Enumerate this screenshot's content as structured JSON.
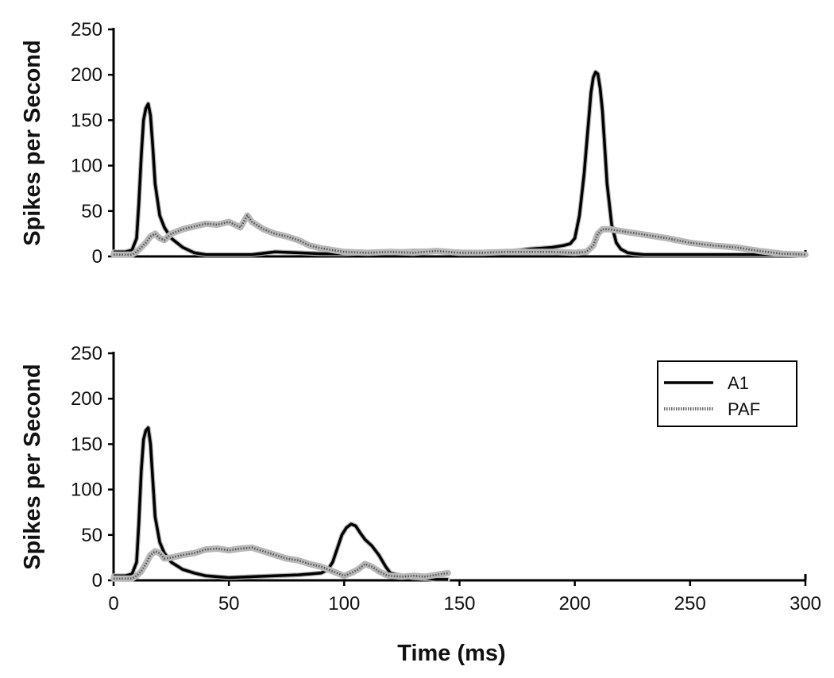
{
  "chart_data": [
    {
      "type": "line",
      "title": "",
      "ylabel": "Spikes per Second",
      "xlabel": "",
      "xlim": [
        0,
        300
      ],
      "ylim": [
        0,
        250
      ],
      "yticks": [
        "0",
        "50",
        "100",
        "150",
        "200",
        "250"
      ],
      "xticks": [],
      "grid": false,
      "legend": null,
      "series": [
        {
          "name": "A1",
          "style": "solid",
          "x": [
            0,
            5,
            8,
            10,
            11,
            12,
            13,
            14,
            15,
            16,
            17,
            18,
            20,
            22,
            25,
            30,
            35,
            40,
            50,
            60,
            70,
            80,
            90,
            100,
            110,
            120,
            130,
            140,
            150,
            160,
            170,
            180,
            190,
            195,
            198,
            200,
            202,
            204,
            206,
            207,
            208,
            209,
            210,
            211,
            212,
            213,
            214,
            216,
            218,
            220,
            223,
            226,
            230,
            240,
            250,
            260,
            270,
            280,
            290,
            300
          ],
          "values": [
            5,
            5,
            7,
            20,
            60,
            110,
            150,
            163,
            168,
            155,
            120,
            80,
            45,
            32,
            20,
            10,
            4,
            2,
            2,
            2,
            5,
            4,
            3,
            3,
            4,
            5,
            6,
            6,
            5,
            4,
            5,
            8,
            10,
            12,
            14,
            20,
            45,
            90,
            150,
            180,
            197,
            203,
            201,
            185,
            160,
            120,
            80,
            35,
            15,
            8,
            4,
            3,
            2,
            2,
            2,
            2,
            2,
            2,
            2,
            2
          ]
        },
        {
          "name": "PAF",
          "style": "dotted",
          "x": [
            0,
            8,
            10,
            12,
            14,
            16,
            18,
            20,
            22,
            25,
            30,
            35,
            40,
            45,
            50,
            55,
            58,
            60,
            65,
            70,
            75,
            80,
            85,
            90,
            100,
            110,
            120,
            130,
            140,
            150,
            160,
            170,
            180,
            190,
            200,
            205,
            208,
            210,
            212,
            215,
            220,
            225,
            230,
            240,
            250,
            260,
            270,
            280,
            290,
            300
          ],
          "values": [
            2,
            2,
            5,
            10,
            15,
            22,
            25,
            20,
            18,
            25,
            30,
            33,
            36,
            35,
            38,
            32,
            45,
            38,
            30,
            25,
            22,
            18,
            12,
            9,
            5,
            4,
            5,
            4,
            6,
            4,
            4,
            5,
            5,
            5,
            4,
            5,
            12,
            25,
            30,
            30,
            28,
            26,
            24,
            20,
            15,
            12,
            10,
            6,
            3,
            2
          ]
        }
      ]
    },
    {
      "type": "line",
      "title": "",
      "ylabel": "Spikes per Second",
      "xlabel": "Time (ms)",
      "xlim": [
        0,
        300
      ],
      "ylim": [
        0,
        250
      ],
      "yticks": [
        "0",
        "50",
        "100",
        "150",
        "200",
        "250"
      ],
      "xticks": [
        "0",
        "50",
        "100",
        "150",
        "200",
        "250",
        "300"
      ],
      "grid": false,
      "legend": "top-right",
      "series": [
        {
          "name": "A1",
          "style": "solid",
          "x": [
            0,
            5,
            8,
            10,
            11,
            12,
            13,
            14,
            15,
            16,
            17,
            18,
            20,
            22,
            25,
            30,
            35,
            40,
            50,
            60,
            70,
            80,
            85,
            90,
            93,
            95,
            97,
            99,
            101,
            103,
            105,
            107,
            109,
            112,
            115,
            118,
            120,
            125,
            130,
            135,
            140,
            145
          ],
          "values": [
            5,
            5,
            7,
            20,
            65,
            120,
            155,
            165,
            168,
            150,
            110,
            70,
            42,
            30,
            20,
            12,
            8,
            5,
            3,
            4,
            5,
            6,
            7,
            8,
            12,
            20,
            35,
            50,
            58,
            62,
            60,
            52,
            45,
            38,
            28,
            15,
            8,
            5,
            3,
            2,
            1,
            1
          ]
        },
        {
          "name": "PAF",
          "style": "dotted",
          "x": [
            0,
            8,
            10,
            12,
            14,
            16,
            18,
            20,
            22,
            25,
            30,
            35,
            40,
            45,
            50,
            55,
            60,
            65,
            70,
            75,
            80,
            85,
            90,
            95,
            100,
            103,
            106,
            109,
            112,
            115,
            118,
            120,
            125,
            130,
            135,
            140,
            145
          ],
          "values": [
            2,
            2,
            5,
            10,
            18,
            28,
            32,
            30,
            24,
            25,
            28,
            30,
            34,
            35,
            33,
            35,
            36,
            32,
            28,
            24,
            22,
            18,
            15,
            10,
            5,
            8,
            12,
            18,
            15,
            10,
            6,
            5,
            4,
            5,
            4,
            6,
            8
          ]
        }
      ]
    }
  ]
}
